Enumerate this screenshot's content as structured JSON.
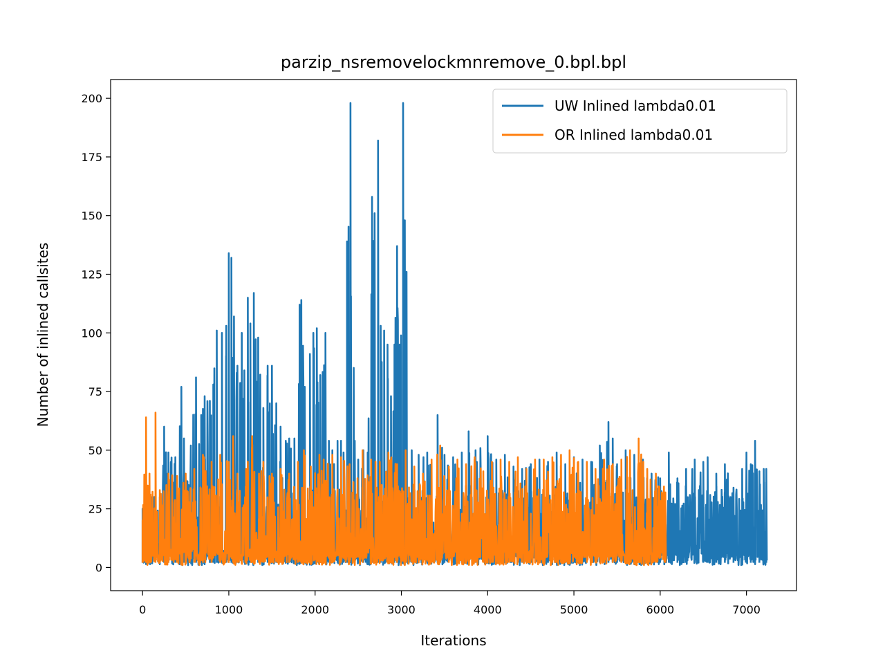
{
  "chart_data": {
    "type": "line",
    "title": "parzip_nsremovelockmnremove_0.bpl.bpl",
    "xlabel": "Iterations",
    "ylabel": "Number of inlined callsites",
    "xlim": [
      -370,
      7580
    ],
    "ylim": [
      -9.9,
      208
    ],
    "xticks": [
      0,
      1000,
      2000,
      3000,
      4000,
      5000,
      6000,
      7000
    ],
    "xtick_labels": [
      "0",
      "1000",
      "2000",
      "3000",
      "4000",
      "5000",
      "6000",
      "7000"
    ],
    "yticks": [
      0,
      25,
      50,
      75,
      100,
      125,
      150,
      175,
      200
    ],
    "ytick_labels": [
      "0",
      "25",
      "50",
      "75",
      "100",
      "125",
      "150",
      "175",
      "200"
    ],
    "grid": false,
    "legend_position": "upper-right",
    "series": [
      {
        "name": "UW Inlined lambda0.01",
        "color": "#1f77b4",
        "length": 7230,
        "peaks": [
          [
            0,
            25
          ],
          [
            30,
            28
          ],
          [
            100,
            30
          ],
          [
            200,
            30
          ],
          [
            250,
            60
          ],
          [
            300,
            49
          ],
          [
            380,
            47
          ],
          [
            450,
            77
          ],
          [
            480,
            55
          ],
          [
            560,
            52
          ],
          [
            620,
            81
          ],
          [
            680,
            65
          ],
          [
            720,
            73
          ],
          [
            780,
            71
          ],
          [
            820,
            78
          ],
          [
            860,
            101
          ],
          [
            920,
            100
          ],
          [
            970,
            103
          ],
          [
            1000,
            134
          ],
          [
            1030,
            132
          ],
          [
            1060,
            107
          ],
          [
            1100,
            86
          ],
          [
            1150,
            100
          ],
          [
            1180,
            84
          ],
          [
            1220,
            115
          ],
          [
            1250,
            104
          ],
          [
            1290,
            117
          ],
          [
            1340,
            98
          ],
          [
            1400,
            68
          ],
          [
            1450,
            86
          ],
          [
            1500,
            86
          ],
          [
            1550,
            70
          ],
          [
            1600,
            60
          ],
          [
            1660,
            54
          ],
          [
            1700,
            55
          ],
          [
            1760,
            55
          ],
          [
            1820,
            112
          ],
          [
            1840,
            114
          ],
          [
            1880,
            77
          ],
          [
            1940,
            91
          ],
          [
            1980,
            100
          ],
          [
            2020,
            102
          ],
          [
            2060,
            82
          ],
          [
            2120,
            100
          ],
          [
            2160,
            54
          ],
          [
            2200,
            50
          ],
          [
            2260,
            54
          ],
          [
            2300,
            54
          ],
          [
            2330,
            49
          ],
          [
            2370,
            139
          ],
          [
            2410,
            198
          ],
          [
            2460,
            54
          ],
          [
            2500,
            46
          ],
          [
            2560,
            50
          ],
          [
            2610,
            49
          ],
          [
            2660,
            158
          ],
          [
            2690,
            151
          ],
          [
            2730,
            182
          ],
          [
            2760,
            103
          ],
          [
            2800,
            101
          ],
          [
            2840,
            95
          ],
          [
            2880,
            73
          ],
          [
            2920,
            95
          ],
          [
            2950,
            137
          ],
          [
            2980,
            95
          ],
          [
            3020,
            198
          ],
          [
            3040,
            148
          ],
          [
            3060,
            126
          ],
          [
            3120,
            50
          ],
          [
            3200,
            48
          ],
          [
            3300,
            49
          ],
          [
            3420,
            65
          ],
          [
            3500,
            48
          ],
          [
            3600,
            47
          ],
          [
            3700,
            49
          ],
          [
            3780,
            58
          ],
          [
            3860,
            50
          ],
          [
            4000,
            56
          ],
          [
            4100,
            46
          ],
          [
            4200,
            48
          ],
          [
            4300,
            43
          ],
          [
            4400,
            42
          ],
          [
            4500,
            44
          ],
          [
            4600,
            46
          ],
          [
            4700,
            45
          ],
          [
            4800,
            49
          ],
          [
            4900,
            44
          ],
          [
            5000,
            47
          ],
          [
            5100,
            46
          ],
          [
            5200,
            45
          ],
          [
            5300,
            52
          ],
          [
            5400,
            62
          ],
          [
            5450,
            55
          ],
          [
            5500,
            44
          ],
          [
            5600,
            50
          ],
          [
            5700,
            48
          ],
          [
            5800,
            46
          ],
          [
            5900,
            40
          ],
          [
            6000,
            38
          ],
          [
            6100,
            49
          ],
          [
            6200,
            38
          ],
          [
            6300,
            42
          ],
          [
            6400,
            46
          ],
          [
            6500,
            45
          ],
          [
            6550,
            47
          ],
          [
            6650,
            40
          ],
          [
            6750,
            44
          ],
          [
            6850,
            34
          ],
          [
            6950,
            42
          ],
          [
            7000,
            49
          ],
          [
            7050,
            44
          ],
          [
            7100,
            54
          ],
          [
            7150,
            41
          ],
          [
            7200,
            42
          ],
          [
            7230,
            42
          ]
        ]
      },
      {
        "name": "OR Inlined lambda0.01",
        "color": "#ff7f0e",
        "length": 6060,
        "peaks": [
          [
            0,
            20
          ],
          [
            40,
            64
          ],
          [
            80,
            40
          ],
          [
            150,
            66
          ],
          [
            200,
            33
          ],
          [
            300,
            40
          ],
          [
            400,
            39
          ],
          [
            500,
            40
          ],
          [
            600,
            42
          ],
          [
            700,
            48
          ],
          [
            800,
            45
          ],
          [
            900,
            48
          ],
          [
            1000,
            45
          ],
          [
            1050,
            56
          ],
          [
            1100,
            40
          ],
          [
            1200,
            42
          ],
          [
            1270,
            56
          ],
          [
            1350,
            40
          ],
          [
            1400,
            45
          ],
          [
            1500,
            40
          ],
          [
            1600,
            42
          ],
          [
            1700,
            40
          ],
          [
            1800,
            45
          ],
          [
            1870,
            50
          ],
          [
            1950,
            43
          ],
          [
            2050,
            48
          ],
          [
            2100,
            46
          ],
          [
            2200,
            48
          ],
          [
            2300,
            47
          ],
          [
            2400,
            44
          ],
          [
            2550,
            50
          ],
          [
            2650,
            46
          ],
          [
            2750,
            45
          ],
          [
            2850,
            49
          ],
          [
            2950,
            44
          ],
          [
            3050,
            50
          ],
          [
            3150,
            43
          ],
          [
            3250,
            40
          ],
          [
            3350,
            46
          ],
          [
            3450,
            52
          ],
          [
            3550,
            43
          ],
          [
            3650,
            46
          ],
          [
            3750,
            44
          ],
          [
            3850,
            47
          ],
          [
            3950,
            41
          ],
          [
            4050,
            45
          ],
          [
            4150,
            46
          ],
          [
            4250,
            45
          ],
          [
            4350,
            47
          ],
          [
            4450,
            42
          ],
          [
            4550,
            46
          ],
          [
            4650,
            46
          ],
          [
            4750,
            47
          ],
          [
            4850,
            48
          ],
          [
            4950,
            50
          ],
          [
            5050,
            45
          ],
          [
            5150,
            45
          ],
          [
            5250,
            42
          ],
          [
            5350,
            46
          ],
          [
            5450,
            44
          ],
          [
            5550,
            46
          ],
          [
            5650,
            50
          ],
          [
            5750,
            55
          ],
          [
            5850,
            42
          ],
          [
            5950,
            40
          ],
          [
            6060,
            32
          ]
        ]
      }
    ]
  }
}
